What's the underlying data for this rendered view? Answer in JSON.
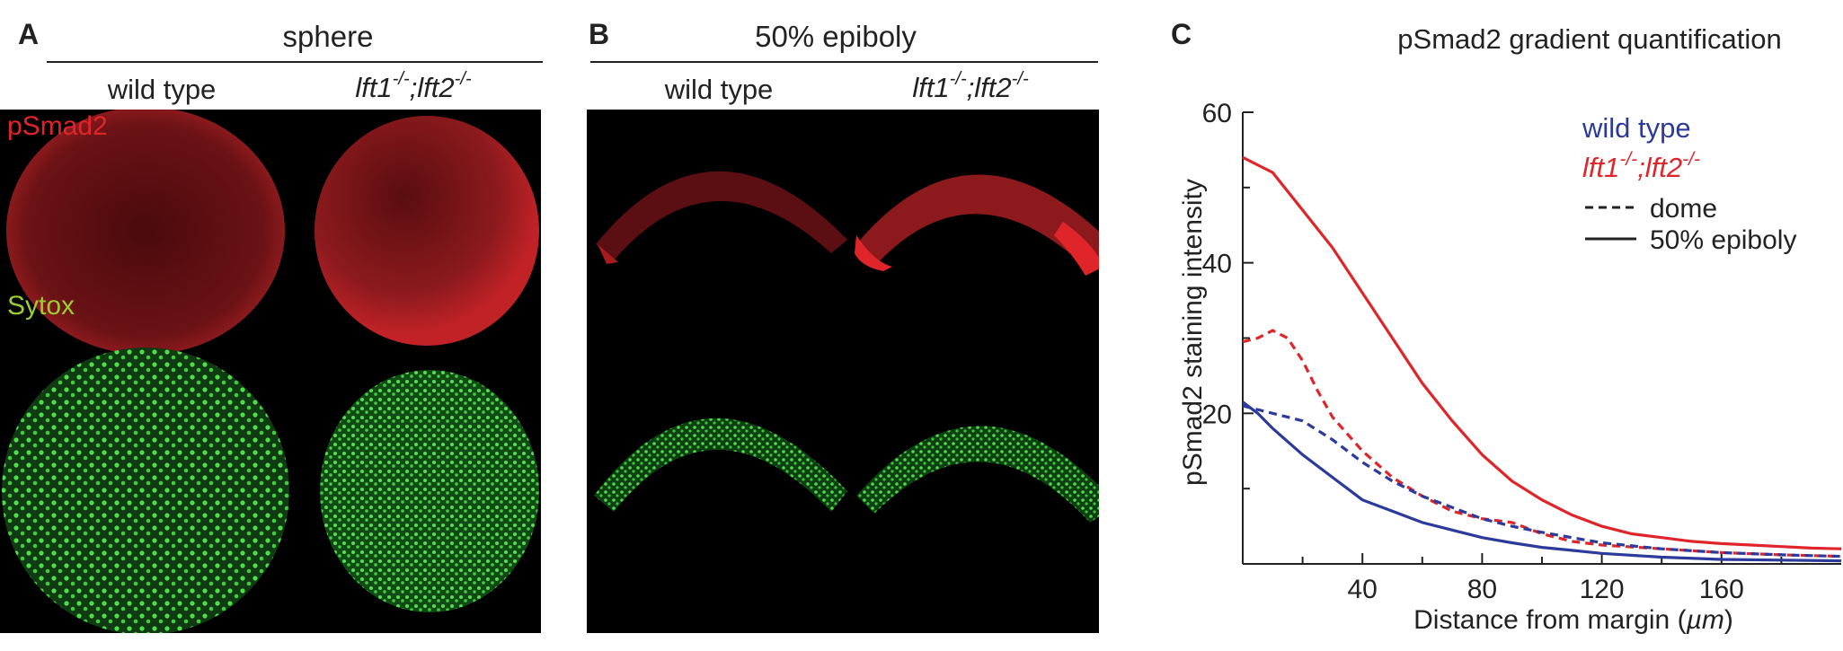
{
  "panels": {
    "A": {
      "letter": "A",
      "title": "sphere",
      "col1": "wild type",
      "col2_main": "lft1",
      "col2_sup1": "-/-",
      "col2_sep": ";lft2",
      "col2_sup2": "-/-",
      "stain_red": "pSmad2",
      "stain_green": "Sytox"
    },
    "B": {
      "letter": "B",
      "title": "50% epiboly",
      "col1": "wild type",
      "col2_main": "lft1",
      "col2_sup1": "-/-",
      "col2_sep": ";lft2",
      "col2_sup2": "-/-"
    },
    "C": {
      "letter": "C"
    }
  },
  "colors": {
    "wild_type": "#2b3a9b",
    "mutant": "#e0252a",
    "stain_red": "#e0252a",
    "stain_green": "#9acd32"
  },
  "chart_data": {
    "type": "line",
    "title": "pSmad2 gradient quantification",
    "xlabel_main": "Distance from margin (",
    "xlabel_unit": "µm",
    "xlabel_end": ")",
    "ylabel": "pSmad2 staining intensity",
    "xlim": [
      0,
      200
    ],
    "ylim": [
      0,
      60
    ],
    "xticks": [
      40,
      80,
      120,
      160
    ],
    "yticks": [
      20,
      40,
      60
    ],
    "grid": false,
    "legend": {
      "position": "top-right",
      "genotypes": [
        {
          "label": "wild type",
          "color": "#2b3a9b"
        },
        {
          "main": "lft1",
          "sup1": "-/-",
          "sep": ";lft2",
          "sup2": "-/-",
          "color": "#e0252a"
        }
      ],
      "styles": [
        {
          "label": "dome",
          "dash": "dashed"
        },
        {
          "label": "50% epiboly",
          "dash": "solid"
        }
      ]
    },
    "series": [
      {
        "genotype": "lft1-/-;lft2-/-",
        "stage": "50% epiboly",
        "color": "#e0252a",
        "dash": "solid",
        "x": [
          0,
          10,
          20,
          30,
          40,
          50,
          60,
          70,
          80,
          90,
          100,
          110,
          120,
          130,
          140,
          150,
          160,
          170,
          180,
          190,
          200
        ],
        "y": [
          54,
          52,
          47,
          42,
          36,
          30,
          24,
          19,
          14.5,
          11,
          8.5,
          6.5,
          5,
          4,
          3.5,
          3,
          2.7,
          2.5,
          2.3,
          2.1,
          2
        ]
      },
      {
        "genotype": "lft1-/-;lft2-/-",
        "stage": "dome",
        "color": "#e0252a",
        "dash": "dashed",
        "x": [
          0,
          5,
          10,
          15,
          20,
          25,
          30,
          40,
          50,
          60,
          70,
          80,
          90,
          100,
          110,
          120,
          140,
          160,
          180,
          200
        ],
        "y": [
          29.5,
          30,
          31,
          30,
          27,
          23,
          19.5,
          15,
          11.5,
          9,
          7,
          6,
          5.5,
          4,
          3,
          2.5,
          2,
          1.5,
          1.2,
          1
        ]
      },
      {
        "genotype": "wild type",
        "stage": "dome",
        "color": "#2b3a9b",
        "dash": "dashed",
        "x": [
          0,
          10,
          20,
          30,
          40,
          50,
          60,
          70,
          80,
          90,
          100,
          110,
          120,
          140,
          160,
          180,
          200
        ],
        "y": [
          21,
          20,
          19,
          16.5,
          13.5,
          11,
          9,
          7.5,
          6,
          5,
          4.2,
          3.5,
          2.8,
          2,
          1.5,
          1.2,
          1
        ]
      },
      {
        "genotype": "wild type",
        "stage": "50% epiboly",
        "color": "#2b3a9b",
        "dash": "solid",
        "x": [
          0,
          5,
          10,
          20,
          30,
          40,
          50,
          60,
          70,
          80,
          90,
          100,
          110,
          120,
          140,
          160,
          180,
          200
        ],
        "y": [
          21.5,
          20,
          18,
          14.5,
          11.5,
          8.5,
          7,
          5.5,
          4.5,
          3.5,
          2.8,
          2.2,
          1.8,
          1.4,
          0.9,
          0.6,
          0.5,
          0.4
        ]
      }
    ]
  }
}
